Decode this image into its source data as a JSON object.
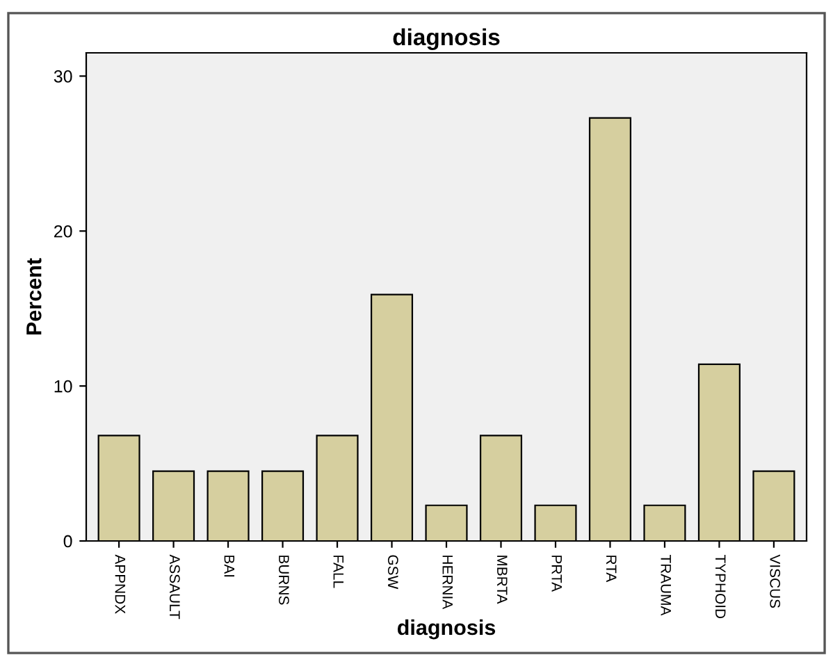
{
  "chart_data": {
    "type": "bar",
    "title": "diagnosis",
    "xlabel": "diagnosis",
    "ylabel": "Percent",
    "categories": [
      "APPNDX",
      "ASSAULT",
      "BAI",
      "BURNS",
      "FALL",
      "GSW",
      "HERNIA",
      "MBRTA",
      "PRTA",
      "RTA",
      "TRAUMA",
      "TYPHOID",
      "VISCUS"
    ],
    "values": [
      6.8,
      4.5,
      4.5,
      4.5,
      6.8,
      15.9,
      2.3,
      6.8,
      2.3,
      27.3,
      2.3,
      11.4,
      4.5
    ],
    "color": "#d6cf9f",
    "ylim": [
      0,
      31.5
    ],
    "yticks": [
      0,
      10,
      20,
      30
    ],
    "grid": false
  }
}
